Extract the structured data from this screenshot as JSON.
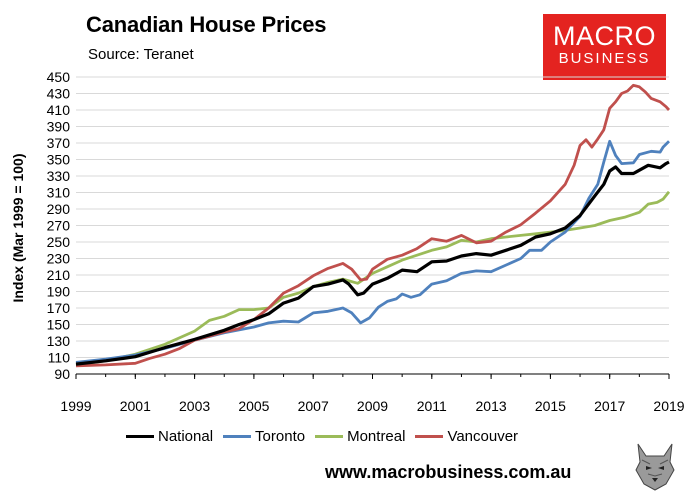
{
  "header": {
    "title": "Canadian House Prices",
    "subtitle": "Source: Teranet"
  },
  "brand": {
    "line1": "MACRO",
    "line2": "BUSINESS",
    "color": "#e42320"
  },
  "footer": {
    "url": "www.macrobusiness.com.au"
  },
  "chart_data": {
    "type": "line",
    "title": "Canadian House Prices",
    "subtitle": "Source: Teranet",
    "ylabel": "Index (Mar 1999 = 100)",
    "xlabel": "",
    "xlim": [
      1999,
      2019
    ],
    "ylim": [
      90,
      450
    ],
    "x_ticks": [
      "1999",
      "2001",
      "2003",
      "2005",
      "2007",
      "2009",
      "2011",
      "2013",
      "2015",
      "2017",
      "2019"
    ],
    "y_ticks": [
      "90",
      "110",
      "130",
      "150",
      "170",
      "190",
      "210",
      "230",
      "250",
      "270",
      "290",
      "310",
      "330",
      "350",
      "370",
      "390",
      "410",
      "430",
      "450"
    ],
    "grid": true,
    "legend": "bottom",
    "series": [
      {
        "name": "National",
        "color": "#000000",
        "points": [
          [
            1999.0,
            102
          ],
          [
            2000.0,
            106
          ],
          [
            2001.0,
            111
          ],
          [
            2002.0,
            122
          ],
          [
            2003.0,
            132
          ],
          [
            2004.0,
            143
          ],
          [
            2004.5,
            150
          ],
          [
            2005.0,
            156
          ],
          [
            2005.5,
            163
          ],
          [
            2006.0,
            176
          ],
          [
            2006.5,
            182
          ],
          [
            2007.0,
            196
          ],
          [
            2007.5,
            199
          ],
          [
            2008.0,
            204
          ],
          [
            2008.2,
            199
          ],
          [
            2008.5,
            186
          ],
          [
            2008.7,
            188
          ],
          [
            2009.0,
            199
          ],
          [
            2009.5,
            206
          ],
          [
            2010.0,
            216
          ],
          [
            2010.5,
            214
          ],
          [
            2011.0,
            226
          ],
          [
            2011.5,
            227
          ],
          [
            2012.0,
            233
          ],
          [
            2012.5,
            236
          ],
          [
            2013.0,
            234
          ],
          [
            2013.5,
            240
          ],
          [
            2014.0,
            246
          ],
          [
            2014.5,
            256
          ],
          [
            2015.0,
            260
          ],
          [
            2015.5,
            267
          ],
          [
            2016.0,
            282
          ],
          [
            2016.5,
            306
          ],
          [
            2016.8,
            320
          ],
          [
            2017.0,
            336
          ],
          [
            2017.2,
            341
          ],
          [
            2017.4,
            333
          ],
          [
            2017.8,
            333
          ],
          [
            2018.0,
            337
          ],
          [
            2018.3,
            343
          ],
          [
            2018.7,
            340
          ],
          [
            2018.9,
            345
          ],
          [
            2019.0,
            347
          ]
        ]
      },
      {
        "name": "Toronto",
        "color": "#4f81bd",
        "points": [
          [
            1999.0,
            104
          ],
          [
            2000.0,
            108
          ],
          [
            2001.0,
            113
          ],
          [
            2002.0,
            121
          ],
          [
            2003.0,
            131
          ],
          [
            2004.0,
            140
          ],
          [
            2005.0,
            147
          ],
          [
            2005.5,
            152
          ],
          [
            2006.0,
            154
          ],
          [
            2006.5,
            153
          ],
          [
            2007.0,
            164
          ],
          [
            2007.5,
            166
          ],
          [
            2008.0,
            170
          ],
          [
            2008.3,
            164
          ],
          [
            2008.6,
            152
          ],
          [
            2008.9,
            158
          ],
          [
            2009.2,
            171
          ],
          [
            2009.5,
            178
          ],
          [
            2009.8,
            181
          ],
          [
            2010.0,
            187
          ],
          [
            2010.3,
            183
          ],
          [
            2010.6,
            186
          ],
          [
            2011.0,
            199
          ],
          [
            2011.5,
            203
          ],
          [
            2012.0,
            212
          ],
          [
            2012.5,
            215
          ],
          [
            2013.0,
            214
          ],
          [
            2013.5,
            222
          ],
          [
            2014.0,
            230
          ],
          [
            2014.3,
            240
          ],
          [
            2014.7,
            240
          ],
          [
            2015.0,
            250
          ],
          [
            2015.5,
            262
          ],
          [
            2016.0,
            281
          ],
          [
            2016.3,
            303
          ],
          [
            2016.6,
            320
          ],
          [
            2016.8,
            347
          ],
          [
            2017.0,
            372
          ],
          [
            2017.2,
            355
          ],
          [
            2017.4,
            345
          ],
          [
            2017.8,
            346
          ],
          [
            2018.0,
            356
          ],
          [
            2018.4,
            360
          ],
          [
            2018.7,
            359
          ],
          [
            2018.8,
            365
          ],
          [
            2019.0,
            372
          ]
        ]
      },
      {
        "name": "Montreal",
        "color": "#9bbb59",
        "points": [
          [
            1999.0,
            101
          ],
          [
            2000.0,
            106
          ],
          [
            2001.0,
            114
          ],
          [
            2002.0,
            126
          ],
          [
            2003.0,
            142
          ],
          [
            2003.5,
            155
          ],
          [
            2004.0,
            160
          ],
          [
            2004.5,
            168
          ],
          [
            2005.0,
            168
          ],
          [
            2005.5,
            170
          ],
          [
            2006.0,
            183
          ],
          [
            2006.5,
            188
          ],
          [
            2007.0,
            196
          ],
          [
            2007.5,
            201
          ],
          [
            2008.0,
            205
          ],
          [
            2008.5,
            200
          ],
          [
            2009.0,
            212
          ],
          [
            2009.5,
            220
          ],
          [
            2010.0,
            228
          ],
          [
            2010.5,
            234
          ],
          [
            2011.0,
            240
          ],
          [
            2011.5,
            244
          ],
          [
            2012.0,
            252
          ],
          [
            2012.5,
            250
          ],
          [
            2013.0,
            254
          ],
          [
            2013.5,
            256
          ],
          [
            2014.0,
            258
          ],
          [
            2014.5,
            260
          ],
          [
            2015.0,
            262
          ],
          [
            2015.5,
            264
          ],
          [
            2016.0,
            267
          ],
          [
            2016.5,
            270
          ],
          [
            2017.0,
            276
          ],
          [
            2017.5,
            280
          ],
          [
            2018.0,
            286
          ],
          [
            2018.3,
            296
          ],
          [
            2018.6,
            298
          ],
          [
            2018.8,
            302
          ],
          [
            2019.0,
            311
          ]
        ]
      },
      {
        "name": "Vancouver",
        "color": "#c0504d",
        "points": [
          [
            1999.0,
            100
          ],
          [
            2000.0,
            101
          ],
          [
            2001.0,
            103
          ],
          [
            2001.5,
            109
          ],
          [
            2002.0,
            114
          ],
          [
            2002.5,
            121
          ],
          [
            2003.0,
            131
          ],
          [
            2003.5,
            136
          ],
          [
            2004.0,
            141
          ],
          [
            2004.5,
            145
          ],
          [
            2005.0,
            156
          ],
          [
            2005.5,
            170
          ],
          [
            2006.0,
            188
          ],
          [
            2006.5,
            197
          ],
          [
            2007.0,
            209
          ],
          [
            2007.5,
            218
          ],
          [
            2008.0,
            224
          ],
          [
            2008.3,
            217
          ],
          [
            2008.6,
            204
          ],
          [
            2008.8,
            205
          ],
          [
            2009.0,
            217
          ],
          [
            2009.5,
            229
          ],
          [
            2010.0,
            234
          ],
          [
            2010.5,
            242
          ],
          [
            2011.0,
            254
          ],
          [
            2011.5,
            251
          ],
          [
            2012.0,
            258
          ],
          [
            2012.5,
            249
          ],
          [
            2013.0,
            251
          ],
          [
            2013.5,
            262
          ],
          [
            2014.0,
            271
          ],
          [
            2014.5,
            285
          ],
          [
            2015.0,
            300
          ],
          [
            2015.5,
            320
          ],
          [
            2015.8,
            343
          ],
          [
            2016.0,
            367
          ],
          [
            2016.2,
            374
          ],
          [
            2016.4,
            365
          ],
          [
            2016.6,
            375
          ],
          [
            2016.8,
            386
          ],
          [
            2017.0,
            412
          ],
          [
            2017.2,
            420
          ],
          [
            2017.4,
            430
          ],
          [
            2017.6,
            433
          ],
          [
            2017.8,
            440
          ],
          [
            2018.0,
            438
          ],
          [
            2018.2,
            432
          ],
          [
            2018.4,
            424
          ],
          [
            2018.7,
            420
          ],
          [
            2018.9,
            414
          ],
          [
            2019.0,
            410
          ]
        ]
      }
    ]
  }
}
